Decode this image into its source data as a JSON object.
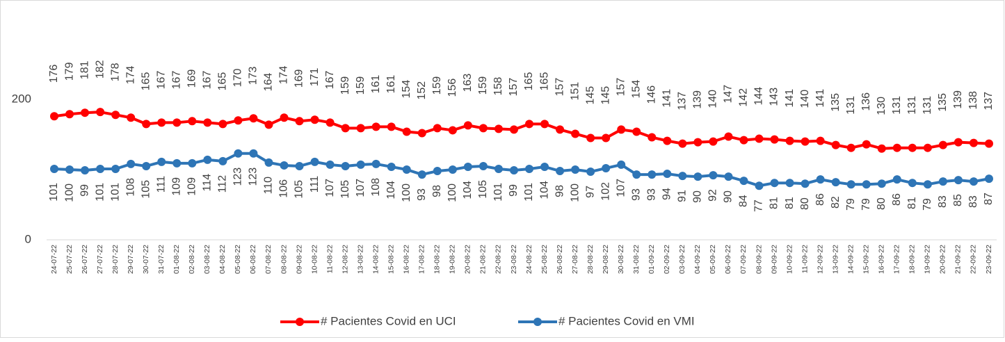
{
  "chart_data": {
    "type": "line",
    "categories": [
      "24-07-22",
      "25-07-22",
      "26-07-22",
      "27-07-22",
      "28-07-22",
      "29-07-22",
      "30-07-22",
      "31-07-22",
      "01-08-22",
      "02-08-22",
      "03-08-22",
      "04-08-22",
      "05-08-22",
      "06-08-22",
      "07-08-22",
      "08-08-22",
      "09-08-22",
      "10-08-22",
      "11-08-22",
      "12-08-22",
      "13-08-22",
      "14-08-22",
      "15-08-22",
      "16-08-22",
      "17-08-22",
      "18-08-22",
      "19-08-22",
      "20-08-22",
      "21-08-22",
      "22-08-22",
      "23-08-22",
      "24-08-22",
      "25-08-22",
      "26-08-22",
      "27-08-22",
      "28-08-22",
      "29-08-22",
      "30-08-22",
      "31-08-22",
      "01-09-22",
      "02-09-22",
      "03-09-22",
      "04-09-22",
      "05-09-22",
      "06-09-22",
      "07-09-22",
      "08-09-22",
      "09-09-22",
      "10-09-22",
      "11-09-22",
      "12-09-22",
      "13-09-22",
      "14-09-22",
      "15-09-22",
      "16-09-22",
      "17-09-22",
      "18-09-22",
      "19-09-22",
      "20-09-22",
      "21-09-22",
      "22-09-22",
      "23-09-22"
    ],
    "series": [
      {
        "name": "# Pacientes Covid en UCI",
        "color": "#ff0000",
        "label_position": "above",
        "values": [
          176,
          179,
          181,
          182,
          178,
          174,
          165,
          167,
          167,
          169,
          167,
          165,
          170,
          173,
          164,
          174,
          169,
          171,
          167,
          159,
          159,
          161,
          161,
          154,
          152,
          159,
          156,
          163,
          159,
          158,
          157,
          165,
          165,
          157,
          151,
          145,
          145,
          157,
          154,
          146,
          141,
          137,
          139,
          140,
          147,
          142,
          144,
          143,
          141,
          140,
          141,
          135,
          131,
          136,
          130,
          131,
          131,
          131,
          135,
          139,
          138,
          137
        ]
      },
      {
        "name": "# Pacientes Covid en VMI",
        "color": "#2e75b6",
        "label_position": "below",
        "values": [
          101,
          100,
          99,
          101,
          101,
          108,
          105,
          111,
          109,
          109,
          114,
          112,
          123,
          123,
          110,
          106,
          105,
          111,
          107,
          105,
          107,
          108,
          104,
          100,
          93,
          98,
          100,
          104,
          105,
          101,
          99,
          101,
          104,
          98,
          100,
          97,
          102,
          107,
          93,
          93,
          94,
          91,
          90,
          92,
          90,
          84,
          77,
          81,
          81,
          80,
          86,
          82,
          79,
          79,
          80,
          86,
          81,
          79,
          83,
          85,
          83,
          87
        ]
      }
    ],
    "ylim": [
      0,
      300
    ],
    "yticks": [
      0,
      200
    ],
    "grid": false,
    "legend": "bottom"
  }
}
